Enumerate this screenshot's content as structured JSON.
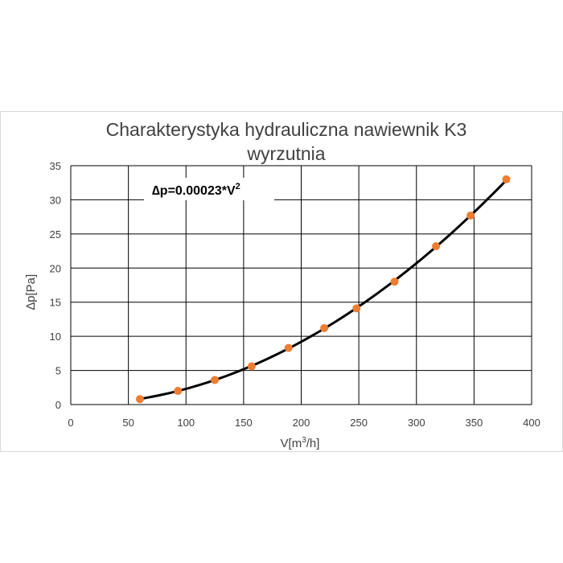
{
  "chart_data": {
    "type": "scatter",
    "title": [
      "Charakterystyka hydrauliczna nawiewnik K3",
      "wyrzutnia"
    ],
    "xlabel": {
      "main": "V[m",
      "sup": "3",
      "tail": "/h]"
    },
    "ylabel": "∆p[Pa]",
    "xlim": [
      0,
      400
    ],
    "ylim": [
      0,
      35
    ],
    "xticks": [
      "0",
      "50",
      "100",
      "150",
      "200",
      "250",
      "300",
      "350",
      "400"
    ],
    "yticks": [
      "0",
      "5",
      "10",
      "15",
      "20",
      "25",
      "30",
      "35"
    ],
    "grid": true,
    "annotation": {
      "main": "∆p=0.00023*V",
      "sup": "2"
    },
    "trendline": {
      "coefficient": 0.00023,
      "exponent": 2,
      "x_range": [
        60,
        378
      ]
    },
    "series": [
      {
        "x": [
          60,
          93,
          125,
          157,
          189,
          220,
          248,
          281,
          317,
          347,
          378
        ],
        "y": [
          0.8,
          2.0,
          3.6,
          5.6,
          8.3,
          11.2,
          14.1,
          18.0,
          23.2,
          27.7,
          33.0
        ]
      }
    ],
    "colors": {
      "marker": "#ED7D31",
      "line": "#000000",
      "grid": "#000000"
    }
  }
}
